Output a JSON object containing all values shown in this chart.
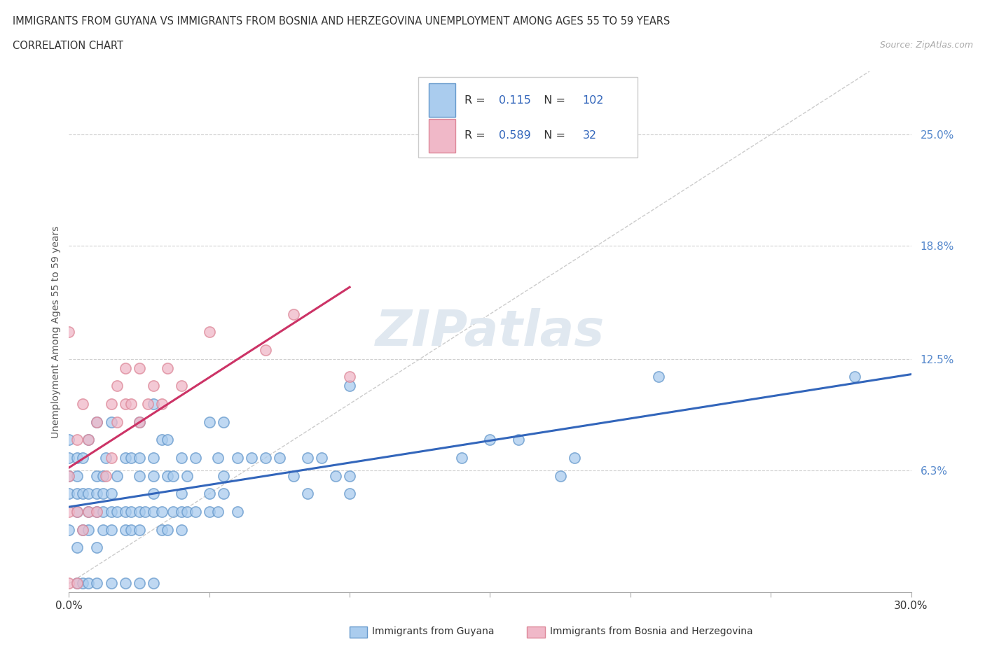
{
  "title_line1": "IMMIGRANTS FROM GUYANA VS IMMIGRANTS FROM BOSNIA AND HERZEGOVINA UNEMPLOYMENT AMONG AGES 55 TO 59 YEARS",
  "title_line2": "CORRELATION CHART",
  "source_text": "Source: ZipAtlas.com",
  "ylabel": "Unemployment Among Ages 55 to 59 years",
  "xlim": [
    0.0,
    0.3
  ],
  "ylim": [
    -0.005,
    0.285
  ],
  "ytick_labels": [
    "6.3%",
    "12.5%",
    "18.8%",
    "25.0%"
  ],
  "ytick_values": [
    0.063,
    0.125,
    0.188,
    0.25
  ],
  "grid_color": "#d0d0d0",
  "background_color": "#ffffff",
  "guyana_face_color": "#aaccee",
  "guyana_edge_color": "#6699cc",
  "bosnia_face_color": "#f0b8c8",
  "bosnia_edge_color": "#dd8899",
  "guyana_line_color": "#3366bb",
  "bosnia_line_color": "#cc3366",
  "ref_line_color": "#cccccc",
  "R_guyana": 0.115,
  "N_guyana": 102,
  "R_bosnia": 0.589,
  "N_bosnia": 32,
  "legend_label_guyana": "Immigrants from Guyana",
  "legend_label_bosnia": "Immigrants from Bosnia and Herzegovina",
  "guyana_x": [
    0.0,
    0.0,
    0.0,
    0.0,
    0.0,
    0.003,
    0.003,
    0.003,
    0.003,
    0.003,
    0.003,
    0.005,
    0.005,
    0.005,
    0.005,
    0.007,
    0.007,
    0.007,
    0.007,
    0.007,
    0.01,
    0.01,
    0.01,
    0.01,
    0.01,
    0.01,
    0.012,
    0.012,
    0.012,
    0.012,
    0.013,
    0.015,
    0.015,
    0.015,
    0.015,
    0.015,
    0.017,
    0.017,
    0.02,
    0.02,
    0.02,
    0.02,
    0.022,
    0.022,
    0.022,
    0.025,
    0.025,
    0.025,
    0.025,
    0.025,
    0.025,
    0.027,
    0.03,
    0.03,
    0.03,
    0.03,
    0.03,
    0.03,
    0.033,
    0.033,
    0.033,
    0.035,
    0.035,
    0.035,
    0.037,
    0.037,
    0.04,
    0.04,
    0.04,
    0.04,
    0.042,
    0.042,
    0.045,
    0.045,
    0.05,
    0.05,
    0.05,
    0.053,
    0.053,
    0.055,
    0.055,
    0.055,
    0.06,
    0.06,
    0.065,
    0.07,
    0.075,
    0.08,
    0.085,
    0.085,
    0.09,
    0.095,
    0.1,
    0.1,
    0.1,
    0.14,
    0.15,
    0.16,
    0.175,
    0.18,
    0.21,
    0.28
  ],
  "guyana_y": [
    0.03,
    0.05,
    0.06,
    0.07,
    0.08,
    0.0,
    0.02,
    0.04,
    0.05,
    0.06,
    0.07,
    0.0,
    0.03,
    0.05,
    0.07,
    0.0,
    0.03,
    0.04,
    0.05,
    0.08,
    0.0,
    0.02,
    0.04,
    0.05,
    0.06,
    0.09,
    0.03,
    0.04,
    0.05,
    0.06,
    0.07,
    0.0,
    0.03,
    0.04,
    0.05,
    0.09,
    0.04,
    0.06,
    0.0,
    0.03,
    0.04,
    0.07,
    0.03,
    0.04,
    0.07,
    0.0,
    0.03,
    0.04,
    0.06,
    0.07,
    0.09,
    0.04,
    0.0,
    0.04,
    0.05,
    0.06,
    0.07,
    0.1,
    0.03,
    0.04,
    0.08,
    0.03,
    0.06,
    0.08,
    0.04,
    0.06,
    0.03,
    0.04,
    0.05,
    0.07,
    0.04,
    0.06,
    0.04,
    0.07,
    0.04,
    0.05,
    0.09,
    0.04,
    0.07,
    0.05,
    0.06,
    0.09,
    0.04,
    0.07,
    0.07,
    0.07,
    0.07,
    0.06,
    0.05,
    0.07,
    0.07,
    0.06,
    0.05,
    0.06,
    0.11,
    0.07,
    0.08,
    0.08,
    0.06,
    0.07,
    0.115,
    0.115
  ],
  "bosnia_x": [
    0.0,
    0.0,
    0.0,
    0.0,
    0.003,
    0.003,
    0.003,
    0.005,
    0.005,
    0.007,
    0.007,
    0.01,
    0.01,
    0.013,
    0.015,
    0.015,
    0.017,
    0.017,
    0.02,
    0.02,
    0.022,
    0.025,
    0.025,
    0.028,
    0.03,
    0.033,
    0.035,
    0.04,
    0.05,
    0.07,
    0.08,
    0.1
  ],
  "bosnia_y": [
    0.0,
    0.04,
    0.06,
    0.14,
    0.0,
    0.04,
    0.08,
    0.03,
    0.1,
    0.04,
    0.08,
    0.04,
    0.09,
    0.06,
    0.07,
    0.1,
    0.09,
    0.11,
    0.1,
    0.12,
    0.1,
    0.09,
    0.12,
    0.1,
    0.11,
    0.1,
    0.12,
    0.11,
    0.14,
    0.13,
    0.15,
    0.115
  ]
}
